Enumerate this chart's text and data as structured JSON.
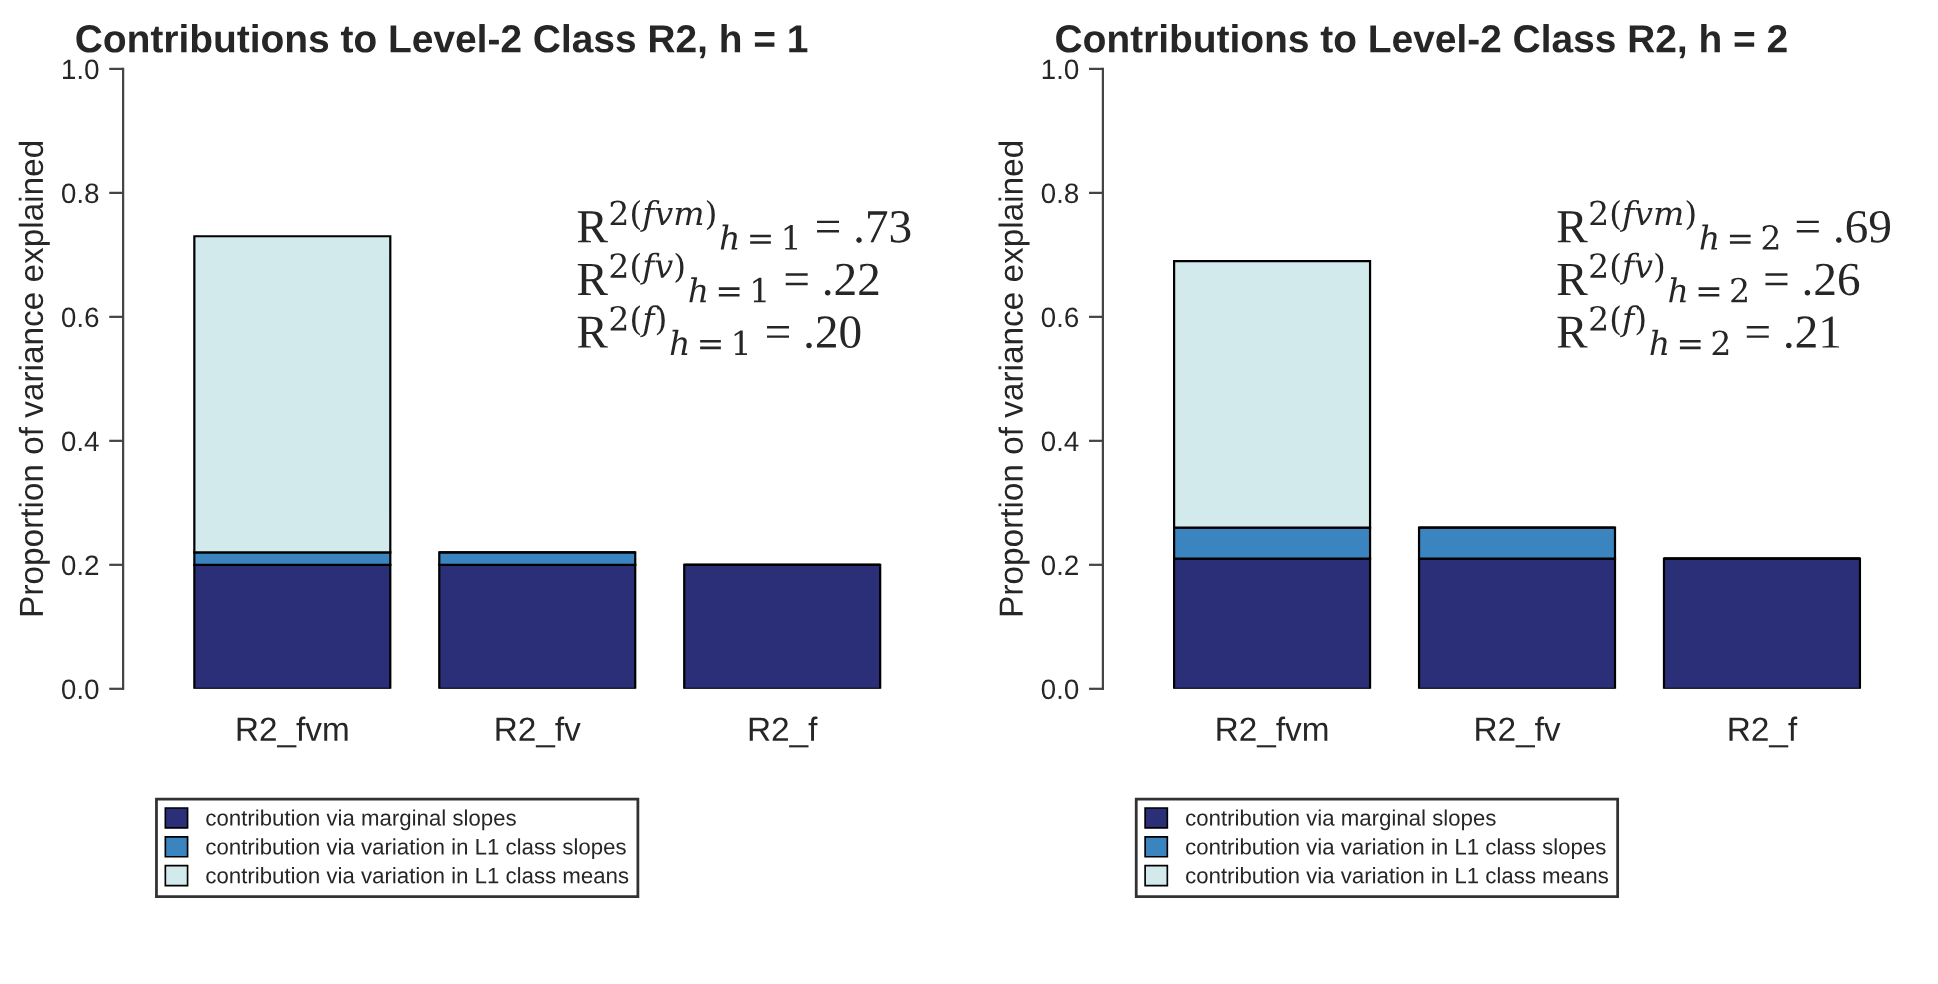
{
  "chart_data": [
    {
      "type": "bar",
      "title": "Contributions to Level-2 Class R2, h = 1",
      "ylabel": "Proportion of variance explained",
      "categories": [
        "R2_fvm",
        "R2_fv",
        "R2_f"
      ],
      "stacked": true,
      "ylim": [
        0,
        1
      ],
      "yticks": [
        {
          "value": 0,
          "label": "0.0"
        },
        {
          "value": 0.2,
          "label": "0.2"
        },
        {
          "value": 0.4,
          "label": "0.4"
        },
        {
          "value": 0.6,
          "label": "0.6"
        },
        {
          "value": 0.8,
          "label": "0.8"
        },
        {
          "value": 1,
          "label": "1.0"
        }
      ],
      "grid": false,
      "legend": "bottom",
      "series": [
        {
          "name": "contribution via marginal slopes",
          "color": "#2b2f78",
          "values": [
            0.2,
            0.2,
            0.2
          ]
        },
        {
          "name": "contribution via variation in L1 class slopes",
          "color": "#3a85c0",
          "values": [
            0.02,
            0.02,
            null
          ]
        },
        {
          "name": "contribution via variation in L1 class means",
          "color": "#d3eaed",
          "values": [
            0.51,
            null,
            null
          ]
        }
      ],
      "annotations": [
        "R$^{2(fvm)}$$_{h=1}$ = .73",
        "R$^{2(fv)}$$_{h=1}$ = .22",
        "R$^{2(f)}$$_{h=1}$ = .20"
      ]
    },
    {
      "type": "bar",
      "title": "Contributions to Level-2 Class R2, h = 2",
      "ylabel": "Proportion of variance explained",
      "categories": [
        "R2_fvm",
        "R2_fv",
        "R2_f"
      ],
      "stacked": true,
      "ylim": [
        0,
        1
      ],
      "yticks": [
        {
          "value": 0,
          "label": "0.0"
        },
        {
          "value": 0.2,
          "label": "0.2"
        },
        {
          "value": 0.4,
          "label": "0.4"
        },
        {
          "value": 0.6,
          "label": "0.6"
        },
        {
          "value": 0.8,
          "label": "0.8"
        },
        {
          "value": 1,
          "label": "1.0"
        }
      ],
      "grid": false,
      "legend": "bottom",
      "series": [
        {
          "name": "contribution via marginal slopes",
          "color": "#2b2f78",
          "values": [
            0.21,
            0.21,
            0.21
          ]
        },
        {
          "name": "contribution via variation in L1 class slopes",
          "color": "#3a85c0",
          "values": [
            0.05,
            0.05,
            null
          ]
        },
        {
          "name": "contribution via variation in L1 class means",
          "color": "#d3eaed",
          "values": [
            0.43,
            null,
            null
          ]
        }
      ],
      "annotations": [
        "R$^{2(fvm)}$$_{h=2}$ = .69",
        "R$^{2(fv)}$$_{h=2}$ = .26",
        "R$^{2(f)}$$_{h=2}$ = .21"
      ]
    }
  ]
}
